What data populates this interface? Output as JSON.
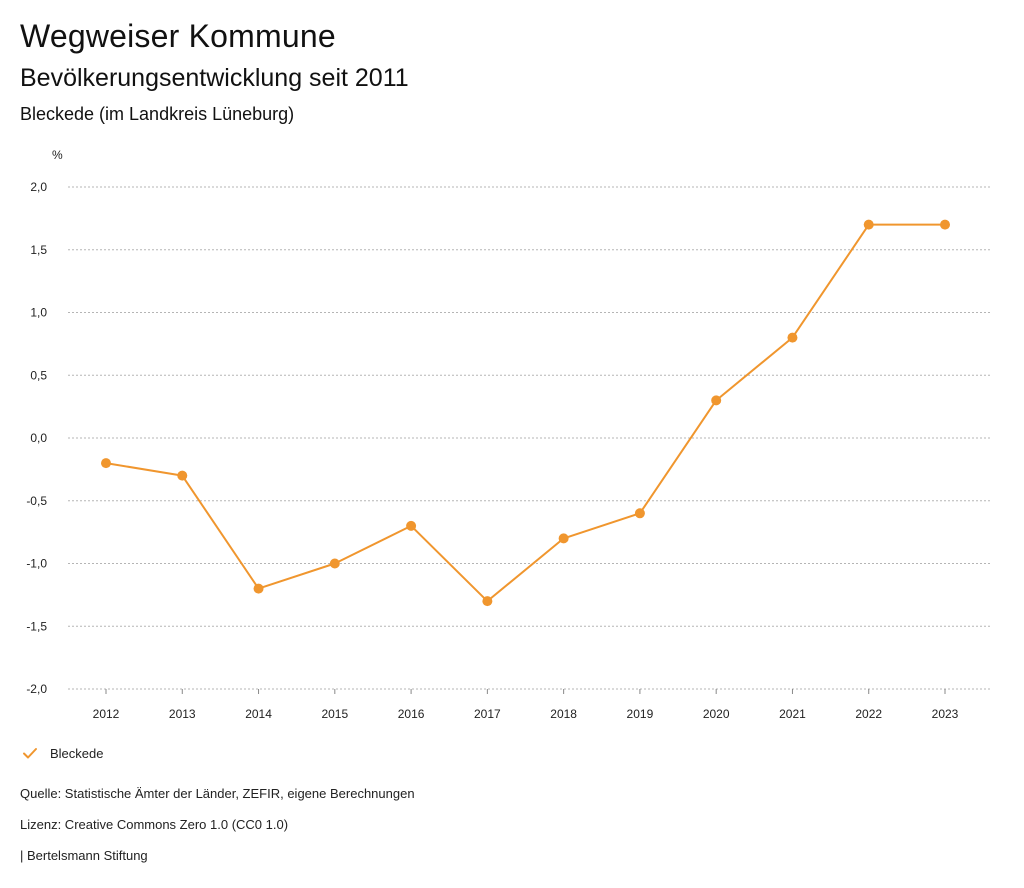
{
  "header": {
    "title": "Wegweiser Kommune",
    "subtitle": "Bevölkerungsentwicklung seit 2011",
    "region": "Bleckede (im Landkreis Lüneburg)"
  },
  "chart_data": {
    "type": "line",
    "unit_label": "%",
    "categories": [
      "2012",
      "2013",
      "2014",
      "2015",
      "2016",
      "2017",
      "2018",
      "2019",
      "2020",
      "2021",
      "2022",
      "2023"
    ],
    "series": [
      {
        "name": "Bleckede",
        "values": [
          -0.2,
          -0.3,
          -1.2,
          -1.0,
          -0.7,
          -1.3,
          -0.8,
          -0.6,
          0.3,
          0.8,
          1.7,
          1.7
        ],
        "color": "#f0962e"
      }
    ],
    "ylim": [
      -2.0,
      2.0
    ],
    "yticks": [
      2.0,
      1.5,
      1.0,
      0.5,
      0.0,
      -0.5,
      -1.0,
      -1.5,
      -2.0
    ],
    "ytick_labels": [
      "2,0",
      "1,5",
      "1,0",
      "0,5",
      "0,0",
      "-0,5",
      "-1,0",
      "-1,5",
      "-2,0"
    ],
    "grid": true,
    "legend_position": "bottom-left"
  },
  "legend": {
    "label": "Bleckede",
    "color": "#f0962e",
    "icon": "check-icon"
  },
  "footer": {
    "source": "Quelle: Statistische Ämter der Länder, ZEFIR, eigene Berechnungen",
    "license": "Lizenz: Creative Commons Zero 1.0 (CC0 1.0)",
    "publisher": "| Bertelsmann Stiftung"
  }
}
